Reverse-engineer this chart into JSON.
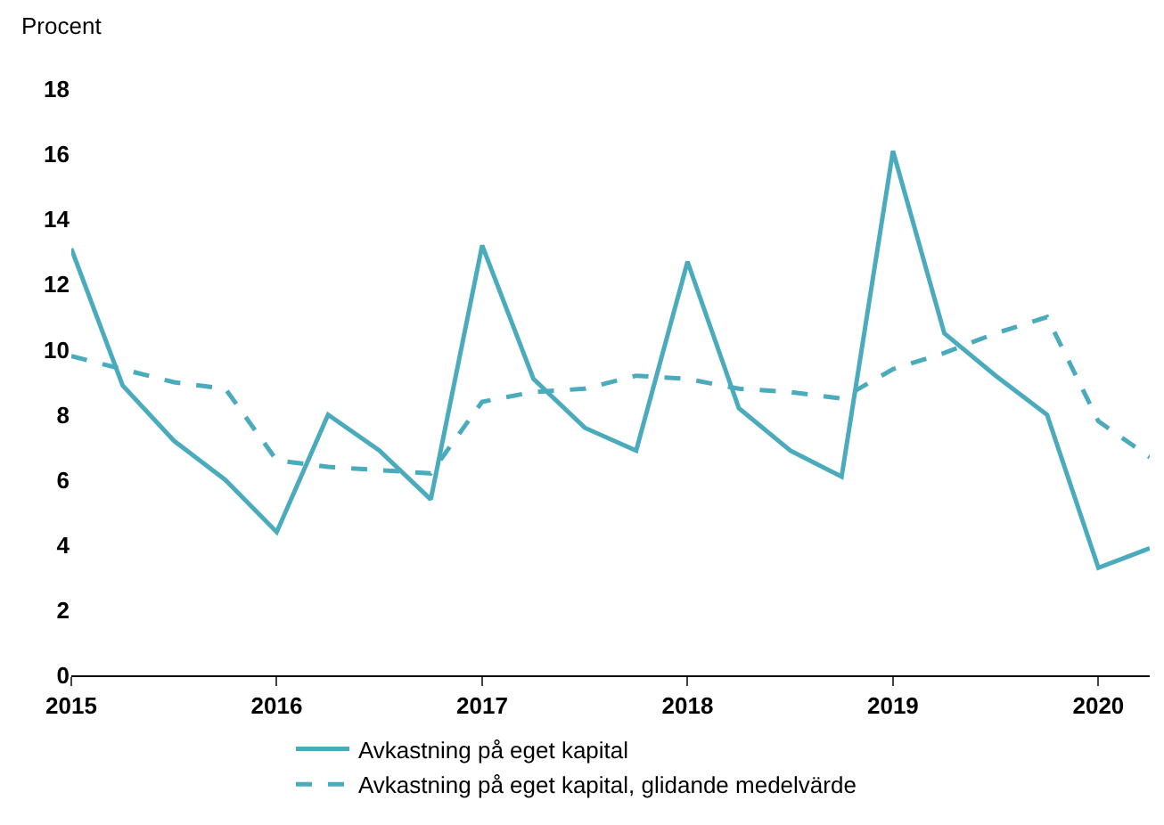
{
  "chart_data": {
    "type": "line",
    "ylabel": "Procent",
    "x": [
      2015,
      2015.25,
      2015.5,
      2015.75,
      2016,
      2016.25,
      2016.5,
      2016.75,
      2017,
      2017.25,
      2017.5,
      2017.75,
      2018,
      2018.25,
      2018.5,
      2018.75,
      2019,
      2019.25,
      2019.5,
      2019.75,
      2020,
      2020.25
    ],
    "series": [
      {
        "name": "Avkastning på eget kapital",
        "color": "#4aabbd",
        "line_style": "solid",
        "values": [
          13.1,
          8.9,
          7.2,
          6.0,
          4.4,
          8.0,
          6.9,
          5.4,
          13.2,
          9.1,
          7.6,
          6.9,
          12.7,
          8.2,
          6.9,
          6.1,
          16.1,
          10.5,
          9.2,
          8.0,
          3.3,
          3.9
        ]
      },
      {
        "name": "Avkastning på eget kapital, glidande medelvärde",
        "color": "#4aabbd",
        "line_style": "dashed",
        "values": [
          9.8,
          9.4,
          9.0,
          8.8,
          6.6,
          6.4,
          6.3,
          6.2,
          8.4,
          8.7,
          8.8,
          9.2,
          9.1,
          8.8,
          8.7,
          8.5,
          9.4,
          9.9,
          10.5,
          11.0,
          7.8,
          6.7
        ]
      }
    ],
    "xlim": [
      2015,
      2020.25
    ],
    "xticks": [
      2015,
      2016,
      2017,
      2018,
      2019,
      2020
    ],
    "ylim": [
      0,
      18
    ],
    "yticks": [
      0,
      2,
      4,
      6,
      8,
      10,
      12,
      14,
      16,
      18
    ],
    "legend": "bottom",
    "marker": "none"
  }
}
